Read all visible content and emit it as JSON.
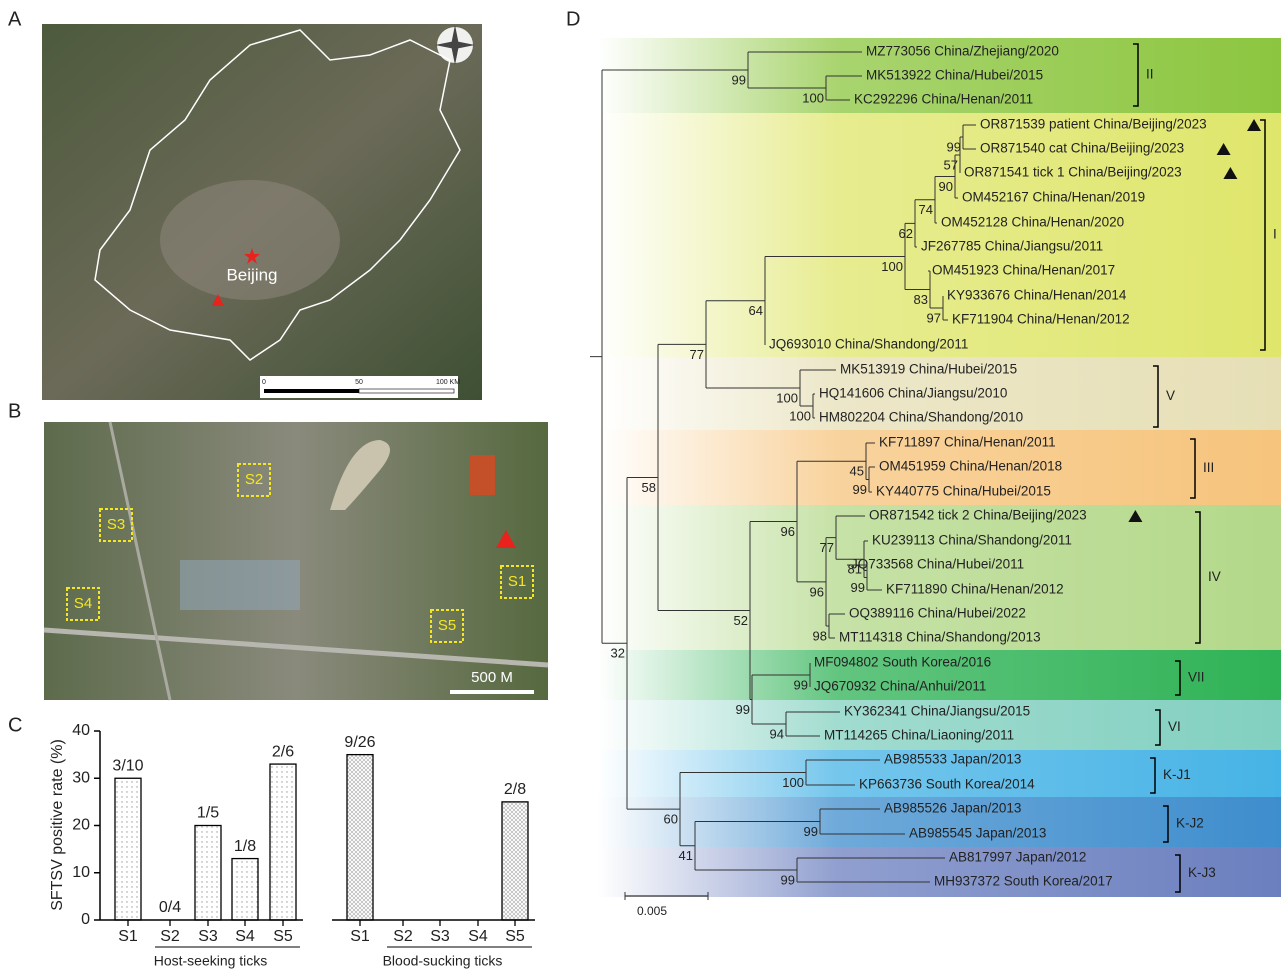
{
  "panel_labels": [
    "A",
    "B",
    "C",
    "D"
  ],
  "map_a": {
    "city": "Beijing",
    "scale_labels": [
      "0",
      "50",
      "100 KM"
    ]
  },
  "map_b": {
    "sites": [
      "S1",
      "S2",
      "S3",
      "S4",
      "S5"
    ],
    "scale": "500 M"
  },
  "chart_data": {
    "type": "bar",
    "ylabel": "SFTSV positive  rate (%)",
    "categories": [
      "S1",
      "S2",
      "S3",
      "S4",
      "S5"
    ],
    "series": [
      {
        "name": "Host-seeking ticks",
        "color": "#ffffff",
        "values": [
          30,
          0,
          20,
          13,
          33
        ],
        "value_labels": [
          "3/10",
          "0/4",
          "1/5",
          "1/8",
          "2/6"
        ]
      },
      {
        "name": "Blood-sucking ticks",
        "color": "#ffffff",
        "values": [
          35,
          null,
          null,
          null,
          25
        ],
        "value_labels": [
          "9/26",
          null,
          null,
          null,
          "2/8"
        ]
      }
    ],
    "ylim": [
      0,
      40
    ],
    "yticks": [
      0,
      10,
      20,
      30,
      40
    ]
  },
  "tree": {
    "leaves": [
      "MZ773056 China/Zhejiang/2020",
      "MK513922 China/Hubei/2015",
      "KC292296 China/Henan/2011",
      "OR871539 patient China/Beijing/2023",
      "OR871540 cat China/Beijing/2023",
      "OR871541 tick 1 China/Beijing/2023",
      "OM452167 China/Henan/2019",
      "OM452128 China/Henan/2020",
      "JF267785 China/Jiangsu/2011",
      "OM451923 China/Henan/2017",
      "KY933676 China/Henan/2014",
      "KF711904 China/Henan/2012",
      "JQ693010 China/Shandong/2011",
      "MK513919 China/Hubei/2015",
      "HQ141606 China/Jiangsu/2010",
      "HM802204 China/Shandong/2010",
      "KF711897 China/Henan/2011",
      "OM451959 China/Henan/2018",
      "KY440775 China/Hubei/2015",
      "OR871542 tick 2 China/Beijing/2023",
      "KU239113 China/Shandong/2011",
      "JQ733568 China/Hubei/2011",
      "KF711890 China/Henan/2012",
      "OQ389116 China/Hubei/2022",
      "MT114318 China/Shandong/2013",
      "MF094802 South Korea/2016",
      "JQ670932 China/Anhui/2011",
      "KY362341 China/Jiangsu/2015",
      "MT114265 China/Liaoning/2011",
      "AB985533 Japan/2013",
      "KP663736 South Korea/2014",
      "AB985526 Japan/2013",
      "AB985545 Japan/2013",
      "AB817997 Japan/2012",
      "MH937372 South Korea/2017"
    ],
    "supports": [
      "99",
      "100",
      "32",
      "58",
      "77",
      "64",
      "100",
      "62",
      "74",
      "90",
      "57",
      "99",
      "83",
      "97",
      "100",
      "100",
      "52",
      "96",
      "45",
      "99",
      "96",
      "77",
      "81",
      "99",
      "98",
      "99",
      "99",
      "94",
      "60",
      "100",
      "41",
      "99",
      "99"
    ],
    "clades": [
      "II",
      "I",
      "V",
      "III",
      "IV",
      "VII",
      "VI",
      "K-J1",
      "K-J2",
      "K-J3"
    ],
    "scale": "0.005"
  }
}
